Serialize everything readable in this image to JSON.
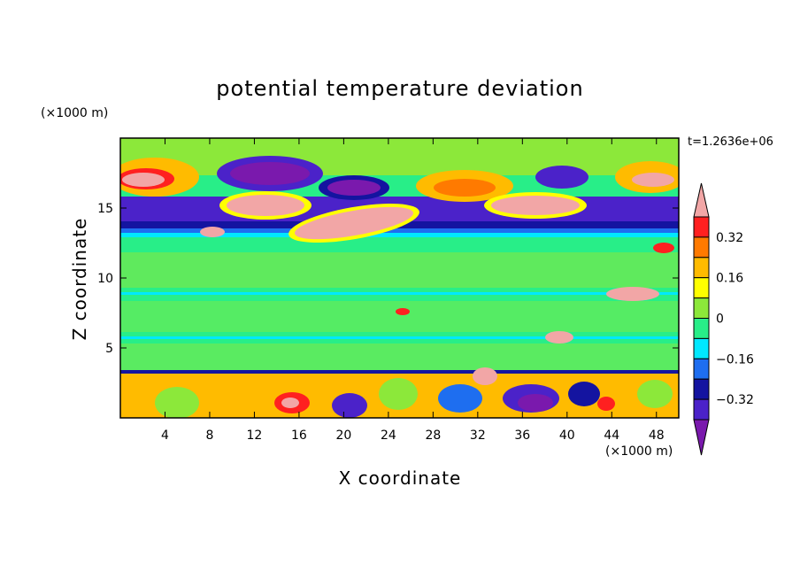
{
  "chart_data": {
    "type": "heatmap",
    "title": "potential temperature deviation",
    "xlabel": "X coordinate",
    "ylabel": "Z coordinate",
    "x_unit": "(×1000 m)",
    "z_unit": "(×1000 m)",
    "time_label": "t=1.2636e+06",
    "xlim": [
      0,
      50
    ],
    "ylim": [
      0,
      20
    ],
    "x_ticks": [
      4,
      8,
      12,
      16,
      20,
      24,
      28,
      32,
      36,
      40,
      44,
      48
    ],
    "y_ticks": [
      5,
      10,
      15
    ],
    "colorbar": {
      "labels": [
        "0.32",
        "0.16",
        "0",
        "−0.16",
        "−0.32"
      ],
      "label_values": [
        0.32,
        0.16,
        0,
        -0.16,
        -0.32
      ],
      "levels": [
        -0.4,
        -0.32,
        -0.24,
        -0.16,
        -0.08,
        0,
        0.08,
        0.16,
        0.24,
        0.32,
        0.4
      ],
      "colors": [
        "#7a19ad",
        "#4b22c9",
        "#1414a0",
        "#1e6ef0",
        "#00e8ff",
        "#28ee88",
        "#8ce83a",
        "#ffff00",
        "#ffbb00",
        "#ff7a00",
        "#ff2020",
        "#f2a6a6"
      ]
    }
  }
}
